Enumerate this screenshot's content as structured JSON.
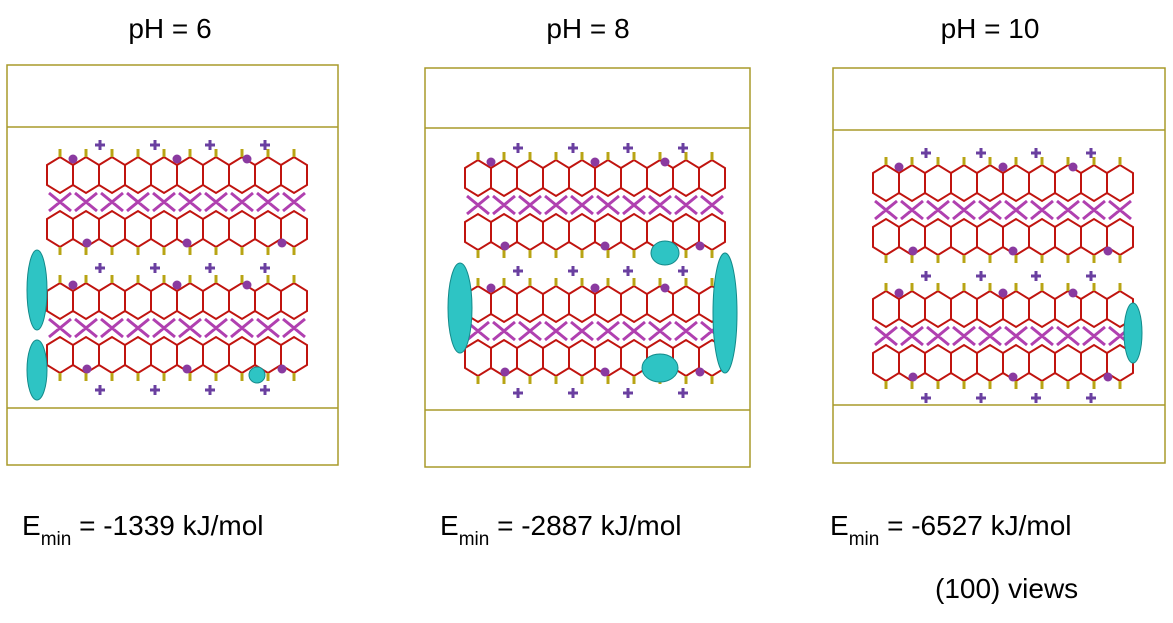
{
  "panels": [
    {
      "title": "pH = 6",
      "energy": {
        "symbol": "E",
        "subscript": "min",
        "value": " = -1339 kJ/mol"
      }
    },
    {
      "title": "pH = 8",
      "energy": {
        "symbol": "E",
        "subscript": "min",
        "value": " = -2887 kJ/mol"
      }
    },
    {
      "title": "pH = 10",
      "energy": {
        "symbol": "E",
        "subscript": "min",
        "value": " = -6527 kJ/mol"
      }
    }
  ],
  "caption": "(100) views"
}
